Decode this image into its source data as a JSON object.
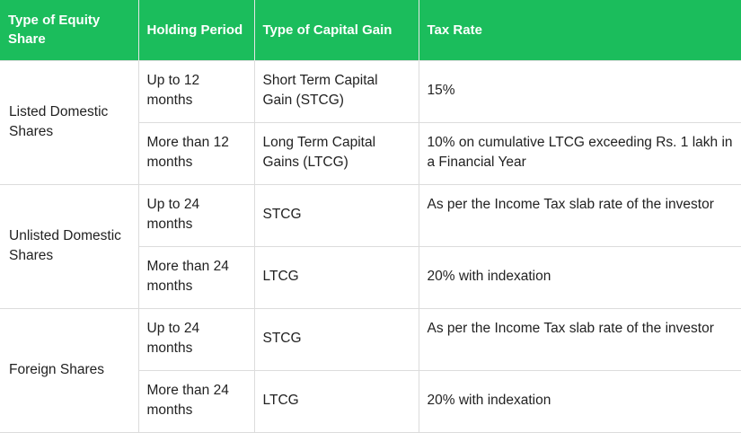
{
  "table": {
    "headers": [
      "Type of Equity Share",
      "Holding Period",
      "Type of Capital Gain",
      "Tax Rate"
    ],
    "groups": [
      {
        "equity_type": "Listed Domestic Shares",
        "rows": [
          {
            "holding_period": "Up to 12 months",
            "gain_type": "Short Term Capital Gain (STCG)",
            "tax_rate": "15%"
          },
          {
            "holding_period": "More than 12 months",
            "gain_type": "Long Term Capital Gains (LTCG)",
            "tax_rate": "10% on cumulative LTCG exceeding Rs. 1 lakh in a Financial Year"
          }
        ]
      },
      {
        "equity_type": "Unlisted Domestic Shares",
        "rows": [
          {
            "holding_period": "Up to 24 months",
            "gain_type": "STCG",
            "tax_rate": "As per the Income Tax slab rate of the investor"
          },
          {
            "holding_period": "More than 24 months",
            "gain_type": "LTCG",
            "tax_rate": "20% with indexation"
          }
        ]
      },
      {
        "equity_type": "Foreign Shares",
        "rows": [
          {
            "holding_period": "Up to 24 months",
            "gain_type": "STCG",
            "tax_rate": "As per the Income Tax slab rate of the investor"
          },
          {
            "holding_period": "More than 24 months",
            "gain_type": "LTCG",
            "tax_rate": "20% with indexation"
          }
        ]
      }
    ]
  },
  "colors": {
    "header_background": "#1bbd5c",
    "header_text": "#ffffff",
    "body_text": "#222222",
    "grid_lines": "#dcdcdc"
  }
}
